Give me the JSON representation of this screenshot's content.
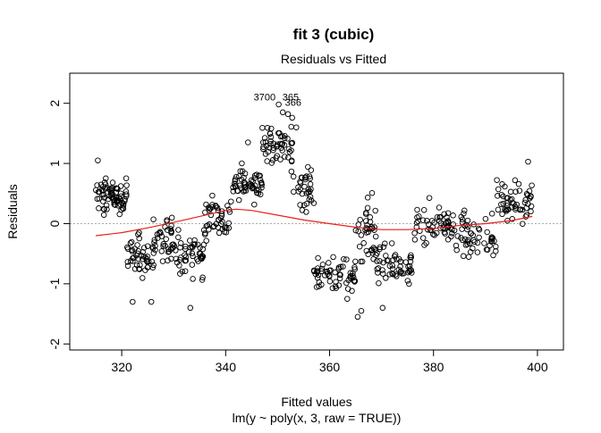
{
  "chart_data": {
    "type": "scatter",
    "title": "fit 3 (cubic)",
    "subtitle": "Residuals vs Fitted",
    "xlabel": "Fitted values",
    "xlabel2": "lm(y ~ poly(x, 3, raw = TRUE))",
    "ylabel": "Residuals",
    "xlim": [
      310,
      405
    ],
    "ylim": [
      -2.1,
      2.5
    ],
    "x_ticks": [
      320,
      340,
      360,
      380,
      400
    ],
    "y_ticks": [
      -2,
      -1,
      0,
      1,
      2
    ],
    "x_tick_labels": [
      "320",
      "340",
      "360",
      "380",
      "400"
    ],
    "y_tick_labels": [
      "-2",
      "-1",
      "0",
      "1",
      "2"
    ],
    "reference_line_y": 0,
    "point_labels": [
      {
        "text": "3700",
        "x": 347.5,
        "y": 2.05
      },
      {
        "text": "365",
        "x": 352.5,
        "y": 2.05
      },
      {
        "text": "366",
        "x": 353.0,
        "y": 1.96
      }
    ],
    "smoother": [
      [
        315,
        -0.2
      ],
      [
        320,
        -0.15
      ],
      [
        325,
        -0.07
      ],
      [
        330,
        0.02
      ],
      [
        335,
        0.12
      ],
      [
        340,
        0.22
      ],
      [
        342,
        0.24
      ],
      [
        345,
        0.22
      ],
      [
        350,
        0.14
      ],
      [
        355,
        0.06
      ],
      [
        360,
        0.0
      ],
      [
        365,
        -0.06
      ],
      [
        370,
        -0.1
      ],
      [
        375,
        -0.1
      ],
      [
        380,
        -0.08
      ],
      [
        385,
        -0.03
      ],
      [
        390,
        0.0
      ],
      [
        395,
        0.05
      ],
      [
        399,
        0.12
      ]
    ],
    "segments": [
      {
        "x0": 315,
        "x1": 321,
        "center": 0.45,
        "spread": 0.35,
        "n": 75
      },
      {
        "x0": 321,
        "x1": 326,
        "center": -0.55,
        "spread": 0.45,
        "n": 45
      },
      {
        "x0": 326,
        "x1": 330,
        "center": -0.25,
        "spread": 0.55,
        "n": 40
      },
      {
        "x0": 330,
        "x1": 336,
        "center": -0.5,
        "spread": 0.5,
        "n": 50
      },
      {
        "x0": 336,
        "x1": 341,
        "center": 0.1,
        "spread": 0.45,
        "n": 45
      },
      {
        "x0": 341,
        "x1": 347,
        "center": 0.65,
        "spread": 0.35,
        "n": 55
      },
      {
        "x0": 347,
        "x1": 353,
        "center": 1.3,
        "spread": 0.45,
        "n": 55
      },
      {
        "x0": 353,
        "x1": 357,
        "center": 0.6,
        "spread": 0.5,
        "n": 35
      },
      {
        "x0": 357,
        "x1": 365,
        "center": -0.85,
        "spread": 0.35,
        "n": 60
      },
      {
        "x0": 365,
        "x1": 369,
        "center": -0.2,
        "spread": 0.8,
        "n": 40
      },
      {
        "x0": 369,
        "x1": 376,
        "center": -0.75,
        "spread": 0.45,
        "n": 55
      },
      {
        "x0": 376,
        "x1": 384,
        "center": 0.0,
        "spread": 0.45,
        "n": 55
      },
      {
        "x0": 384,
        "x1": 392,
        "center": -0.2,
        "spread": 0.5,
        "n": 55
      },
      {
        "x0": 392,
        "x1": 399,
        "center": 0.35,
        "spread": 0.4,
        "n": 55
      }
    ],
    "extra_points": [
      [
        350.2,
        1.98
      ],
      [
        351.0,
        1.85
      ],
      [
        352.0,
        1.82
      ],
      [
        352.8,
        1.76
      ],
      [
        353.6,
        1.6
      ],
      [
        365.4,
        -1.55
      ],
      [
        366.1,
        -1.45
      ],
      [
        333.2,
        -1.4
      ],
      [
        370.2,
        -1.4
      ],
      [
        344.3,
        1.35
      ],
      [
        315.4,
        1.05
      ],
      [
        398.2,
        1.03
      ],
      [
        363.4,
        -1.25
      ],
      [
        322.1,
        -1.3
      ],
      [
        325.7,
        -1.3
      ]
    ],
    "colors": {
      "points": "#000000",
      "smoother": "#e8201c",
      "refline": "#aaaaaa"
    }
  }
}
